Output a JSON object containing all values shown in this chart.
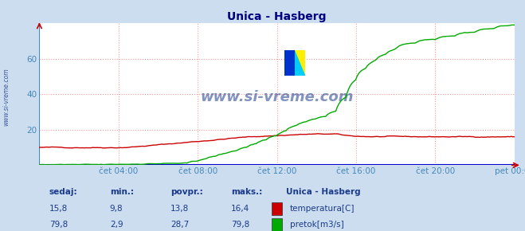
{
  "title": "Unica - Hasberg",
  "title_color": "#000080",
  "bg_color": "#ccddf0",
  "plot_bg_color": "#ffffff",
  "grid_color_dotted": "#ff9999",
  "grid_color_solid": "#aaccee",
  "watermark": "www.si-vreme.com",
  "watermark_color": "#1a3a8a",
  "xlabel_color": "#4488bb",
  "ylabel_color": "#4488bb",
  "spine_color": "#4488bb",
  "x_labels": [
    "čet 04:00",
    "čet 08:00",
    "čet 12:00",
    "čet 16:00",
    "čet 20:00",
    "pet 00:00"
  ],
  "x_tick_hours": [
    4,
    8,
    12,
    16,
    20,
    24
  ],
  "ylim": [
    0,
    80
  ],
  "y_ticks": [
    20,
    40,
    60
  ],
  "temp_color": "#cc0000",
  "flow_color": "#00aa00",
  "blue_line_color": "#0000cc",
  "left_label": "www.si-vreme.com",
  "legend_title": "Unica - Hasberg",
  "stat_headers": [
    "sedaj:",
    "min.:",
    "povpr.:",
    "maks.:"
  ],
  "temp_stats": [
    15.8,
    9.8,
    13.8,
    16.4
  ],
  "flow_stats": [
    79.8,
    2.9,
    28.7,
    79.8
  ],
  "legend_labels": [
    "temperatura[C]",
    "pretok[m3/s]"
  ],
  "total_hours": 24
}
